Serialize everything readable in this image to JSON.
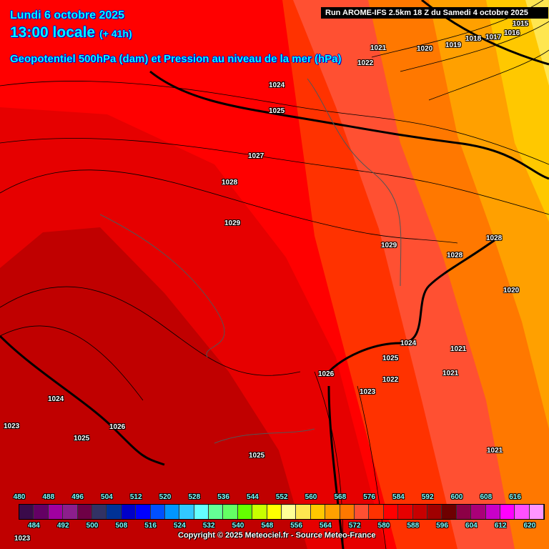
{
  "header": {
    "date": "Lundi 6 octobre 2025",
    "time": "13:00 locale",
    "lead": "(+ 41h)",
    "parameter": "Geopotentiel 500hPa (dam) et Pression au niveau de la mer (hPa)",
    "run": "Run AROME-IFS 2.5km 18 Z du Samedi 4 octobre 2025"
  },
  "isobar_labels": [
    "1015",
    "1016",
    "1017",
    "1018",
    "1019",
    "1020",
    "1021",
    "1022",
    "1024",
    "1025",
    "1027",
    "1028",
    "1029",
    "1029",
    "1028",
    "1028",
    "1020",
    "1024",
    "1025",
    "1021",
    "1021",
    "1026",
    "1023",
    "1022",
    "1024",
    "1023",
    "1025",
    "1026",
    "1025",
    "1021",
    "1023"
  ],
  "legend": {
    "top_labels": [
      "480",
      "488",
      "496",
      "504",
      "512",
      "520",
      "528",
      "536",
      "544",
      "552",
      "560",
      "568",
      "576",
      "584",
      "592",
      "600",
      "608",
      "616"
    ],
    "bottom_labels": [
      "484",
      "492",
      "500",
      "508",
      "516",
      "524",
      "532",
      "540",
      "548",
      "556",
      "564",
      "572",
      "580",
      "588",
      "596",
      "604",
      "612",
      "620"
    ],
    "colors": [
      "#3a0a4a",
      "#640064",
      "#a000a0",
      "#8c1e8c",
      "#6e0046",
      "#323264",
      "#003296",
      "#0000c8",
      "#0000ff",
      "#0050ff",
      "#0096ff",
      "#32c8ff",
      "#64ffff",
      "#64ff96",
      "#64ff64",
      "#64ff00",
      "#c8ff00",
      "#ffff00",
      "#ffff96",
      "#ffe650",
      "#ffc800",
      "#ffa000",
      "#ff7800",
      "#ff5032",
      "#ff3200",
      "#ff0000",
      "#e60000",
      "#c80000",
      "#a00000",
      "#6e0000",
      "#8c0046",
      "#aa0078",
      "#c800c8",
      "#ff00ff",
      "#ff50ff",
      "#ff96ff"
    ]
  },
  "copyright": "Copyright © 2025 Meteociel.fr - Source Meteo-France"
}
